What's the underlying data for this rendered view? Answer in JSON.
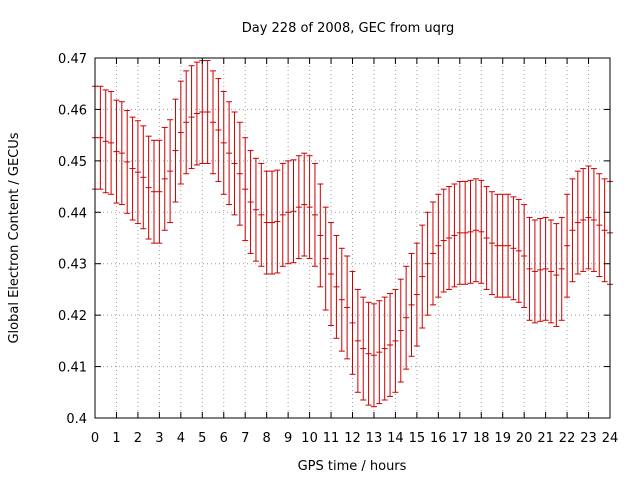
{
  "chart_data": {
    "type": "scatter",
    "title": "Day 228 of 2008, GEC from uqrg",
    "xlabel": "GPS time / hours",
    "ylabel": "Global Electron Content / GECUs",
    "xlim": [
      0,
      24
    ],
    "ylim": [
      0.4,
      0.47
    ],
    "x_ticks": [
      "0",
      "1",
      "2",
      "3",
      "4",
      "5",
      "6",
      "7",
      "8",
      "9",
      "10",
      "11",
      "12",
      "13",
      "14",
      "15",
      "16",
      "17",
      "18",
      "19",
      "20",
      "21",
      "22",
      "23",
      "24"
    ],
    "y_ticks": [
      "0.4",
      "0.41",
      "0.42",
      "0.43",
      "0.44",
      "0.45",
      "0.46",
      "0.47"
    ],
    "grid": true,
    "series": [
      {
        "color": "#cc0000",
        "error": 0.01,
        "x": [
          0,
          0.25,
          0.5,
          0.75,
          1,
          1.25,
          1.5,
          1.75,
          2,
          2.25,
          2.5,
          2.75,
          3,
          3.25,
          3.5,
          3.75,
          4,
          4.25,
          4.5,
          4.75,
          5,
          5.25,
          5.5,
          5.75,
          6,
          6.25,
          6.5,
          6.75,
          7,
          7.25,
          7.5,
          7.75,
          8,
          8.25,
          8.5,
          8.75,
          9,
          9.25,
          9.5,
          9.75,
          10,
          10.25,
          10.5,
          10.75,
          11,
          11.25,
          11.5,
          11.75,
          12,
          12.25,
          12.5,
          12.75,
          13,
          13.25,
          13.5,
          13.75,
          14,
          14.25,
          14.5,
          14.75,
          15,
          15.25,
          15.5,
          15.75,
          16,
          16.25,
          16.5,
          16.75,
          17,
          17.25,
          17.5,
          17.75,
          18,
          18.25,
          18.5,
          18.75,
          19,
          19.25,
          19.5,
          19.75,
          20,
          20.25,
          20.5,
          20.75,
          21,
          21.25,
          21.5,
          21.75,
          22,
          22.25,
          22.5,
          22.75,
          23,
          23.25,
          23.5,
          23.75,
          24
        ],
        "y": [
          0.4545,
          0.4545,
          0.4538,
          0.4535,
          0.4518,
          0.4515,
          0.4498,
          0.4485,
          0.4478,
          0.4468,
          0.4448,
          0.444,
          0.444,
          0.4465,
          0.448,
          0.452,
          0.4555,
          0.4575,
          0.4585,
          0.4592,
          0.4595,
          0.4595,
          0.4575,
          0.456,
          0.4535,
          0.4515,
          0.4495,
          0.4475,
          0.4445,
          0.442,
          0.4405,
          0.4395,
          0.438,
          0.438,
          0.4382,
          0.4395,
          0.44,
          0.4402,
          0.441,
          0.4415,
          0.441,
          0.4395,
          0.4355,
          0.431,
          0.428,
          0.4255,
          0.423,
          0.4215,
          0.4185,
          0.415,
          0.4135,
          0.4125,
          0.4122,
          0.4128,
          0.4135,
          0.4142,
          0.415,
          0.417,
          0.4195,
          0.422,
          0.424,
          0.4275,
          0.43,
          0.432,
          0.4335,
          0.4345,
          0.435,
          0.4355,
          0.436,
          0.436,
          0.4362,
          0.4365,
          0.4362,
          0.435,
          0.434,
          0.4335,
          0.4335,
          0.4335,
          0.433,
          0.4325,
          0.4315,
          0.429,
          0.4285,
          0.4288,
          0.429,
          0.4285,
          0.4278,
          0.429,
          0.4335,
          0.4365,
          0.438,
          0.4385,
          0.439,
          0.4385,
          0.4375,
          0.4365,
          0.436
        ]
      }
    ]
  }
}
